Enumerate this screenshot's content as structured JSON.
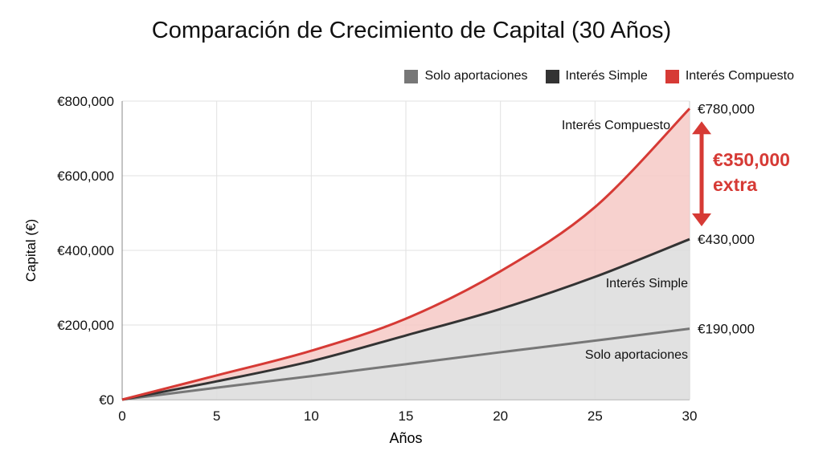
{
  "chart_data": {
    "type": "area",
    "title": "Comparación de Crecimiento de Capital (30 Años)",
    "xlabel": "Años",
    "ylabel": "Capital (€)",
    "xlim": [
      0,
      30
    ],
    "ylim": [
      0,
      800000
    ],
    "x_ticks": [
      0,
      5,
      10,
      15,
      20,
      25,
      30
    ],
    "y_ticks": [
      0,
      200000,
      400000,
      600000,
      800000
    ],
    "y_tick_labels": [
      "€0",
      "€200,000",
      "€400,000",
      "€600,000",
      "€800,000"
    ],
    "grid": true,
    "legend_position": "top-right",
    "x": [
      0,
      5,
      10,
      15,
      20,
      25,
      30
    ],
    "series": [
      {
        "name": "Solo aportaciones",
        "color": "#777777",
        "values": [
          0,
          32000,
          63000,
          95000,
          127000,
          158000,
          190000
        ],
        "label": "Solo aportaciones",
        "end_label": "€190,000"
      },
      {
        "name": "Interés Simple",
        "color": "#333333",
        "values": [
          0,
          49000,
          103000,
          172000,
          243000,
          329000,
          430000
        ],
        "label": "Interés Simple",
        "end_label": "€430,000"
      },
      {
        "name": "Interés Compuesto",
        "color": "#d63a35",
        "values": [
          0,
          65000,
          131000,
          217000,
          344000,
          516000,
          780000
        ],
        "label": "Interés Compuesto",
        "end_label": "€780,000"
      }
    ],
    "annotation": {
      "line1": "€350,000",
      "line2": "extra",
      "color": "#d63a35"
    }
  }
}
